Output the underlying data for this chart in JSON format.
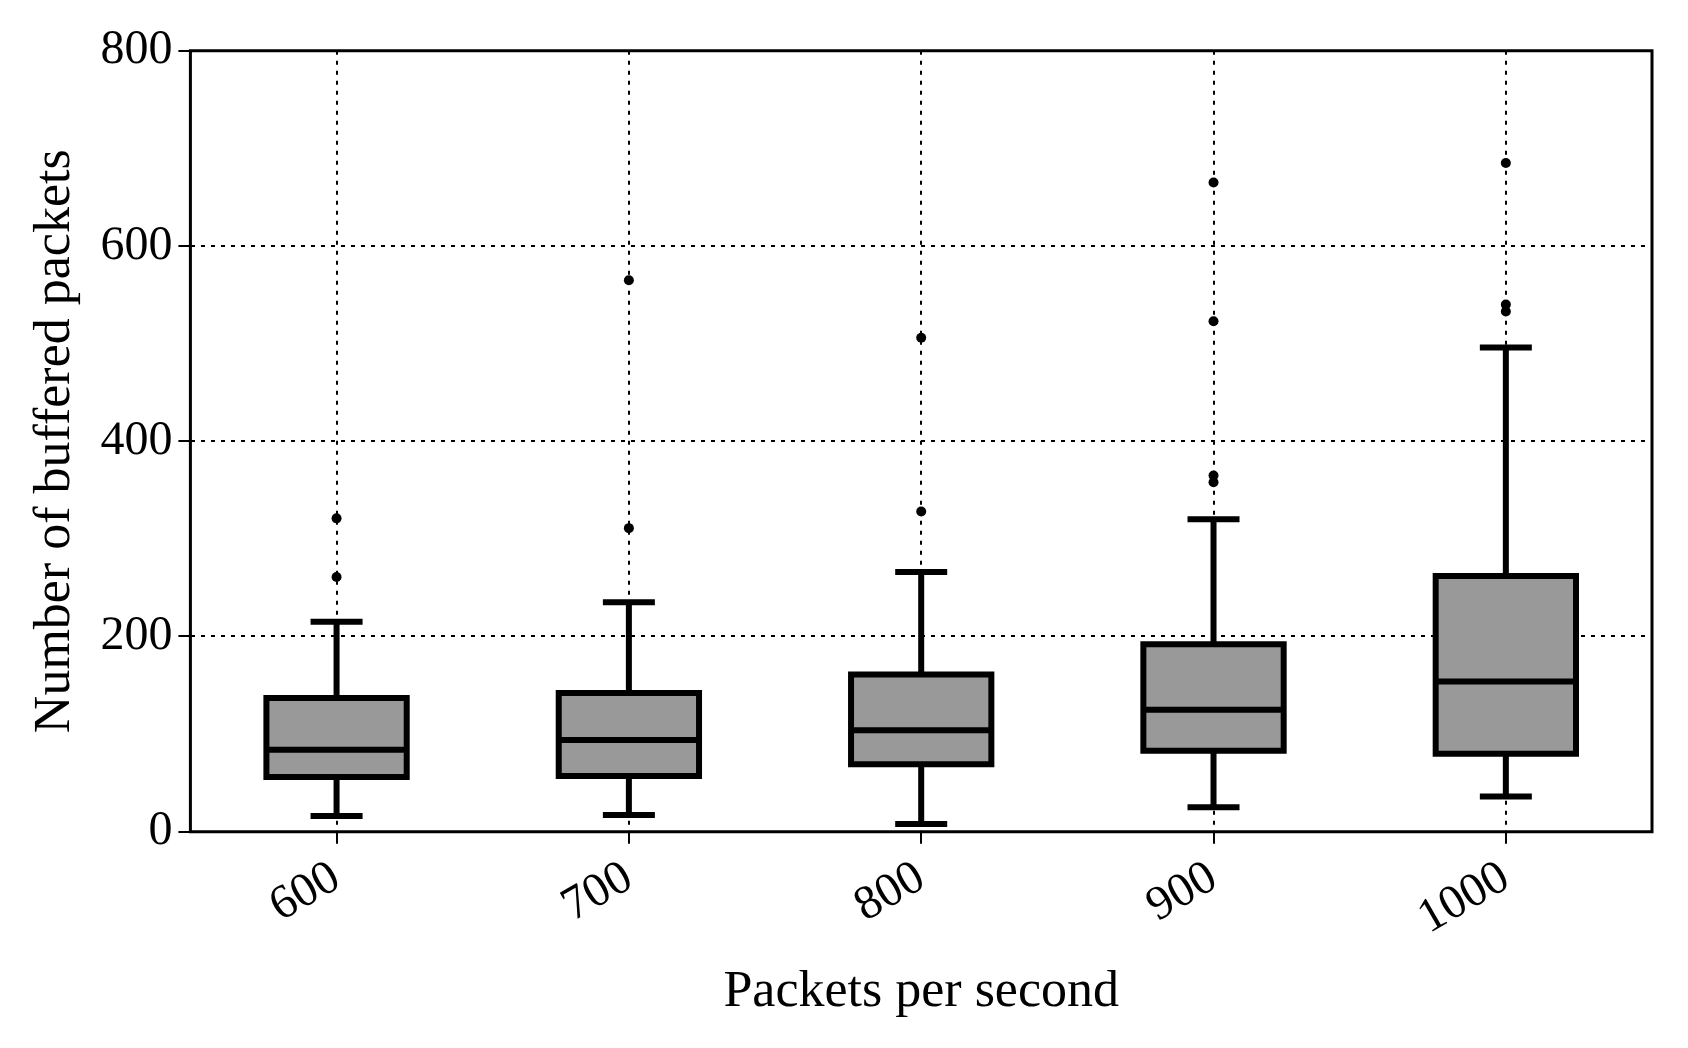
{
  "chart_data": {
    "type": "box",
    "xlabel": "Packets per second",
    "ylabel": "Number of buffered packets",
    "categories": [
      "600",
      "700",
      "800",
      "900",
      "1000"
    ],
    "color": "#999999",
    "boxes": [
      {
        "low": 16,
        "q1": 56,
        "median": 84,
        "q3": 137,
        "high": 215,
        "outliers": [
          261,
          321
        ]
      },
      {
        "low": 17,
        "q1": 57,
        "median": 94,
        "q3": 142,
        "high": 235,
        "outliers": [
          311,
          565
        ]
      },
      {
        "low": 8,
        "q1": 69,
        "median": 104,
        "q3": 161,
        "high": 266,
        "outliers": [
          328,
          506
        ]
      },
      {
        "low": 25,
        "q1": 83,
        "median": 125,
        "q3": 192,
        "high": 320,
        "outliers": [
          358,
          365,
          523,
          665
        ]
      },
      {
        "low": 36,
        "q1": 80,
        "median": 154,
        "q3": 262,
        "high": 496,
        "outliers": [
          533,
          540,
          685
        ]
      }
    ],
    "ylim": [
      0,
      800
    ],
    "yticks": [
      0,
      200,
      400,
      600,
      800
    ],
    "grid": true
  }
}
